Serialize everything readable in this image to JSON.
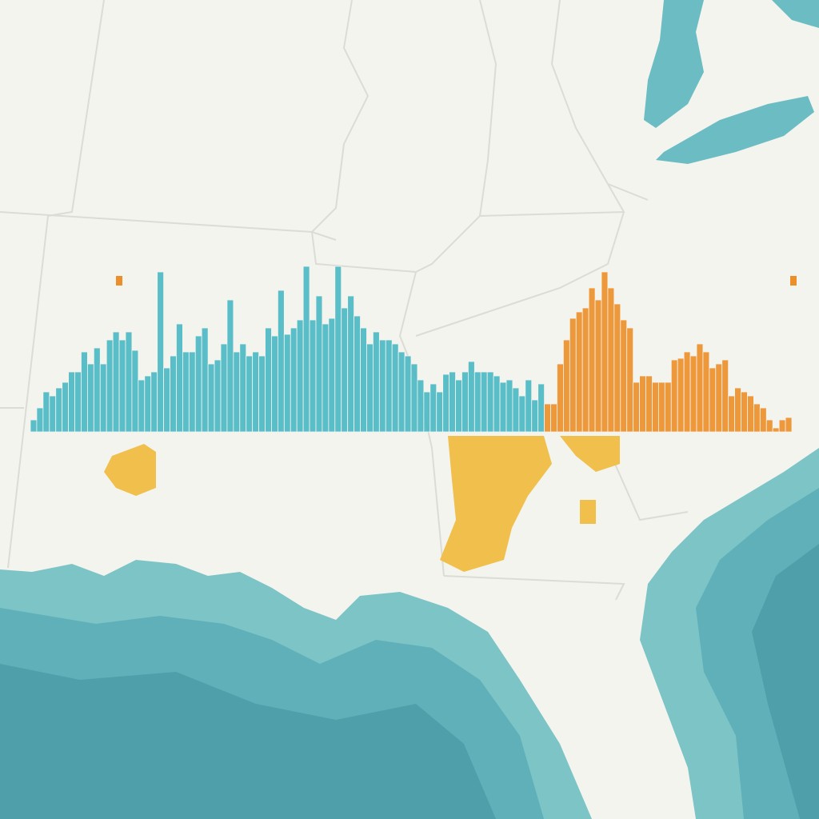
{
  "chart_data": {
    "type": "bar",
    "series": [
      {
        "color": "#4cb8c4",
        "values": [
          15,
          30,
          50,
          45,
          55,
          62,
          75,
          75,
          100,
          85,
          105,
          85,
          115,
          125,
          115,
          125,
          102,
          65,
          70,
          75,
          200,
          80,
          95,
          135,
          100,
          100,
          120,
          130,
          85,
          90,
          110,
          165,
          100,
          110,
          95,
          100,
          95,
          130,
          120,
          177,
          122,
          130,
          140,
          207,
          140,
          170,
          135,
          142,
          207,
          155,
          170,
          145,
          130,
          110,
          125,
          115,
          115,
          110,
          100,
          95,
          85,
          65,
          50,
          60,
          50,
          72,
          75,
          65,
          75,
          88,
          75,
          75,
          75,
          70,
          62,
          65,
          55,
          45,
          65,
          40,
          60
        ]
      },
      {
        "color": "#ec8f2a",
        "values": [
          35,
          35,
          85,
          115,
          142,
          150,
          155,
          180,
          165,
          200,
          180,
          160,
          140,
          130,
          62,
          70,
          70,
          62,
          62,
          62,
          90,
          92,
          100,
          95,
          110,
          100,
          80,
          85,
          90,
          45,
          55,
          50,
          45,
          35,
          30,
          15,
          5,
          15,
          18
        ]
      }
    ],
    "ylim": [
      0,
      220
    ]
  }
}
